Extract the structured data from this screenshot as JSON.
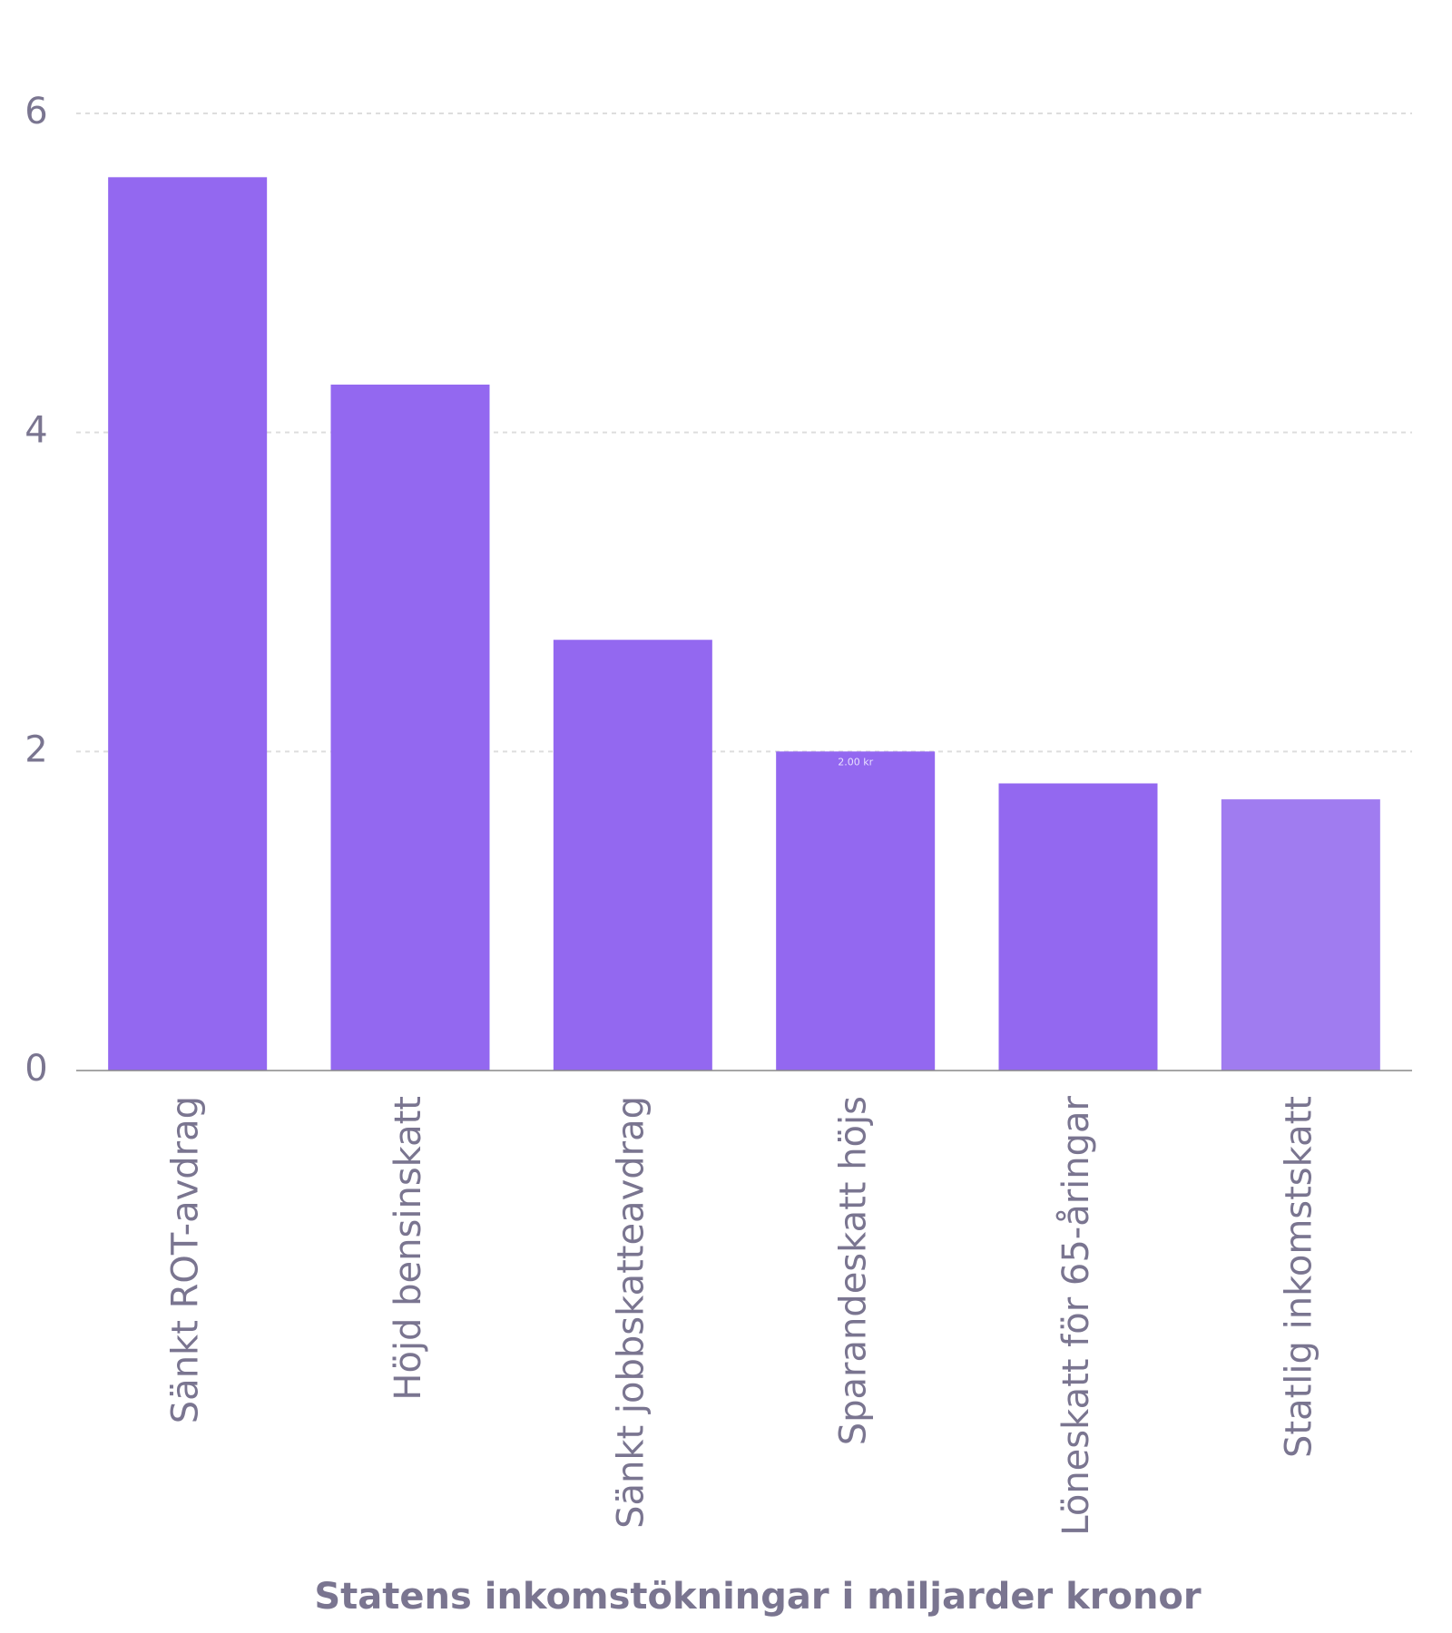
{
  "chart_data": {
    "type": "bar",
    "x_label": "Statens inkomstökningar i miljarder kronor",
    "categories": [
      "Sänkt ROT-avdrag",
      "Höjd bensinskatt",
      "Sänkt jobbskatteavdrag",
      "Sparandeskatt höjs",
      "Löneskatt för 65-åringar",
      "Statlig inkomstskatt"
    ],
    "values": [
      5.6,
      4.3,
      2.7,
      2.0,
      1.8,
      1.7
    ],
    "value_labels": [
      null,
      null,
      null,
      "2.00 kr",
      null,
      null
    ],
    "colors": [
      "#9368f0",
      "#9368f0",
      "#9368f0",
      "#9368f0",
      "#9368f0",
      "#a07cf0"
    ],
    "ylim": [
      0,
      6
    ],
    "yticks": [
      0,
      2,
      4,
      6
    ],
    "grid": true
  }
}
